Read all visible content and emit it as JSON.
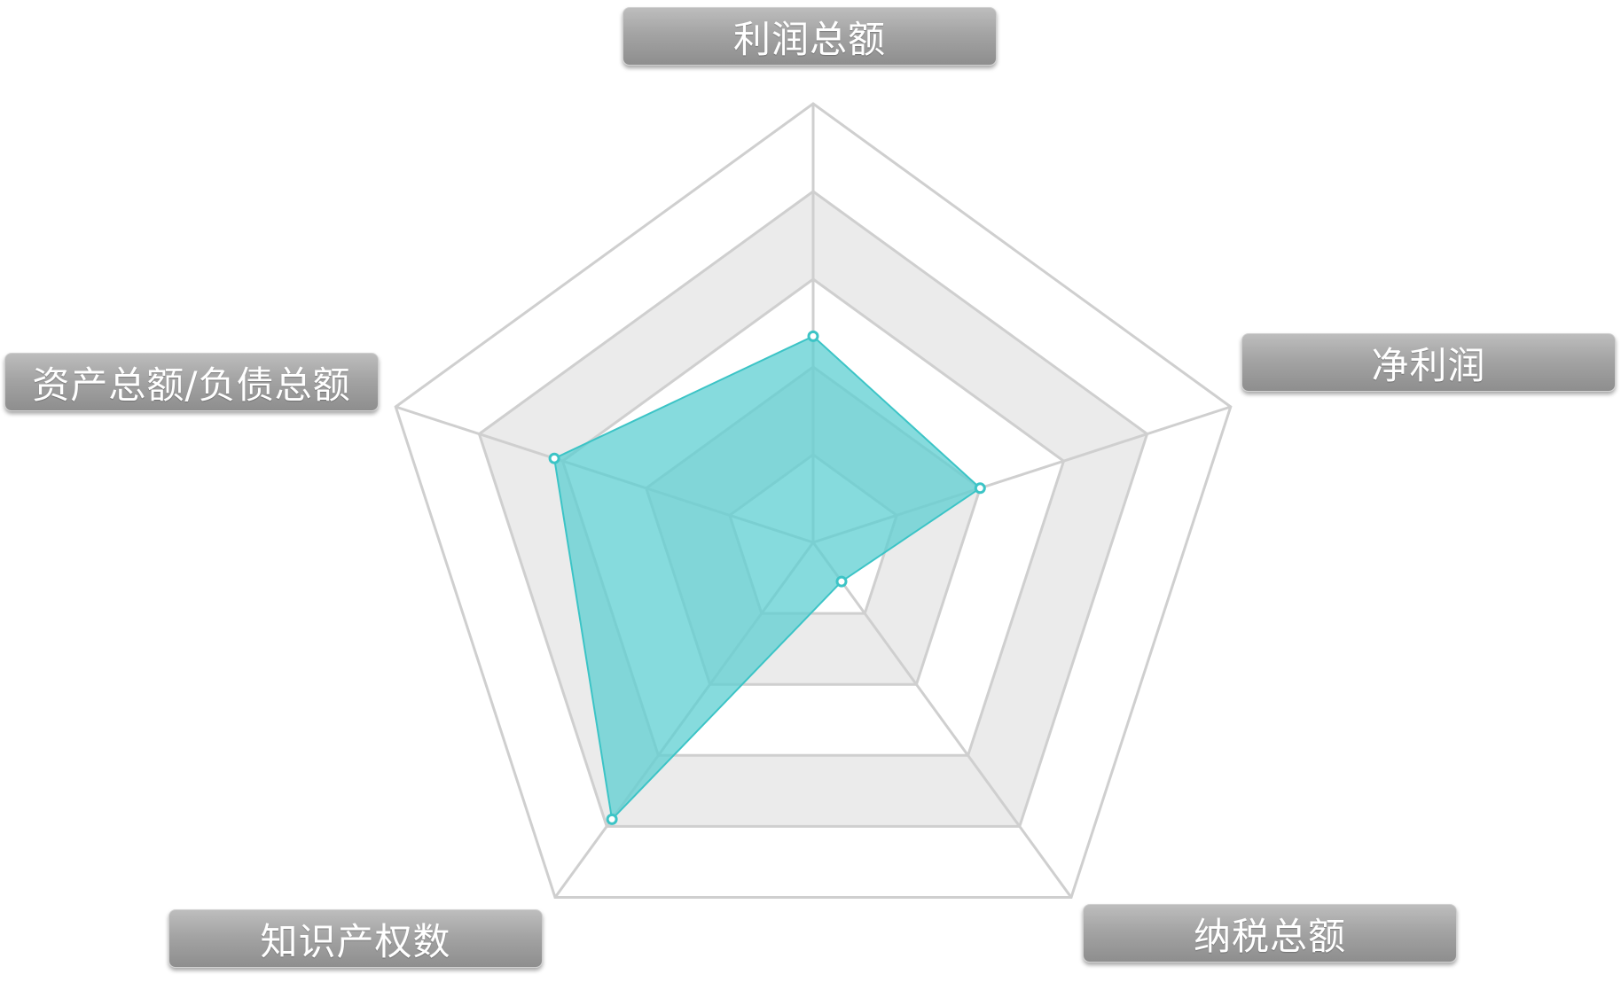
{
  "chart_data": {
    "type": "radar",
    "axes": [
      "利润总额",
      "净利润",
      "纳税总额",
      "知识产权数",
      "资产总额/负债总额"
    ],
    "series": [
      {
        "values": [
          0.47,
          0.4,
          0.11,
          0.78,
          0.62
        ]
      }
    ],
    "range": [
      0,
      1
    ],
    "rings": 5,
    "grid": true,
    "colors": {
      "series_fill": "#5ecfd1",
      "series_stroke": "#3cc4c6",
      "band_fill": "#ebebeb",
      "grid_stroke": "#cfcfcf"
    }
  }
}
